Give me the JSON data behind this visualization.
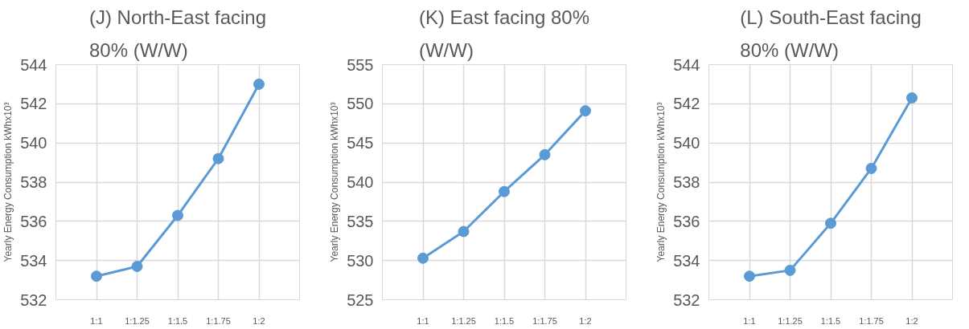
{
  "chart_data": [
    {
      "type": "line",
      "title": "(J) North-East facing 80% (W/W)",
      "ylabel": "Yearly Energy Consumption kWhx10³",
      "categories": [
        "1:1",
        "1:1.25",
        "1:1.5",
        "1:1.75",
        "1:2"
      ],
      "series": [
        {
          "color": "#5b9bd5",
          "values": [
            533.2,
            533.7,
            536.3,
            539.2,
            543.0
          ]
        }
      ],
      "ylim": [
        532,
        544
      ],
      "yticks": [
        532,
        534,
        536,
        538,
        540,
        542,
        544
      ],
      "grid": true,
      "marker": "circle",
      "line_style": "solid"
    },
    {
      "type": "line",
      "title": "(K) East facing 80% (W/W)",
      "ylabel": "Yearly Energy Consumption kWhx10³",
      "categories": [
        "1:1",
        "1:1.25",
        "1:1.5",
        "1:1.75",
        "1:2"
      ],
      "series": [
        {
          "color": "#5b9bd5",
          "values": [
            530.3,
            533.7,
            538.8,
            543.5,
            549.1
          ]
        }
      ],
      "ylim": [
        525,
        555
      ],
      "yticks": [
        525,
        530,
        535,
        540,
        545,
        550,
        555
      ],
      "grid": true,
      "marker": "circle",
      "line_style": "solid"
    },
    {
      "type": "line",
      "title": "(L) South-East facing 80% (W/W)",
      "ylabel": "Yearly Energy Consumption kWhx10³",
      "categories": [
        "1:1",
        "1:1.25",
        "1:1.5",
        "1:1.75",
        "1:2"
      ],
      "series": [
        {
          "color": "#5b9bd5",
          "values": [
            533.2,
            533.5,
            535.9,
            538.7,
            542.3
          ]
        }
      ],
      "ylim": [
        532,
        544
      ],
      "yticks": [
        532,
        534,
        536,
        538,
        540,
        542,
        544
      ],
      "grid": true,
      "marker": "circle",
      "line_style": "solid"
    }
  ]
}
